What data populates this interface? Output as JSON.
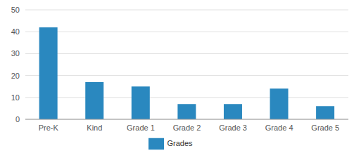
{
  "chart_data": {
    "type": "bar",
    "categories": [
      "Pre-K",
      "Kind",
      "Grade 1",
      "Grade 2",
      "Grade 3",
      "Grade 4",
      "Grade 5"
    ],
    "series": [
      {
        "name": "Grades",
        "color": "#2a88bf",
        "values": [
          42,
          17,
          15,
          7,
          7,
          14,
          6
        ]
      }
    ],
    "ylim": [
      0,
      50
    ],
    "yticks": [
      0,
      10,
      20,
      30,
      40,
      50
    ],
    "grid": true,
    "legend": "bottom"
  }
}
